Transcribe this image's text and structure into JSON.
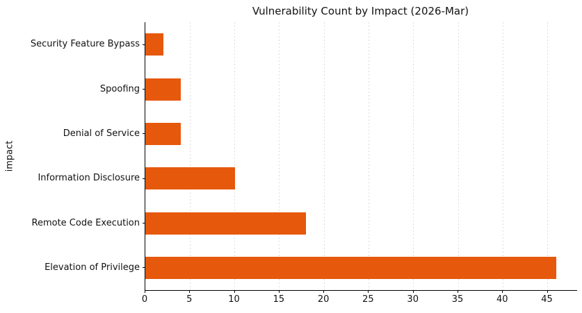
{
  "chart_data": {
    "type": "bar",
    "orientation": "horizontal",
    "title": "Vulnerability Count by Impact (2026-Mar)",
    "xlabel": "",
    "ylabel": "impact",
    "categories": [
      "Security Feature Bypass",
      "Spoofing",
      "Denial of Service",
      "Information Disclosure",
      "Remote Code Execution",
      "Elevation of Privilege"
    ],
    "values": [
      2,
      4,
      4,
      10,
      18,
      46
    ],
    "x_ticks": [
      0,
      5,
      10,
      15,
      20,
      25,
      30,
      35,
      40,
      45
    ],
    "xlim": [
      0,
      48.3
    ],
    "bar_color": "#e6580c",
    "grid": "vertical-dashed",
    "legend_position": "none"
  }
}
